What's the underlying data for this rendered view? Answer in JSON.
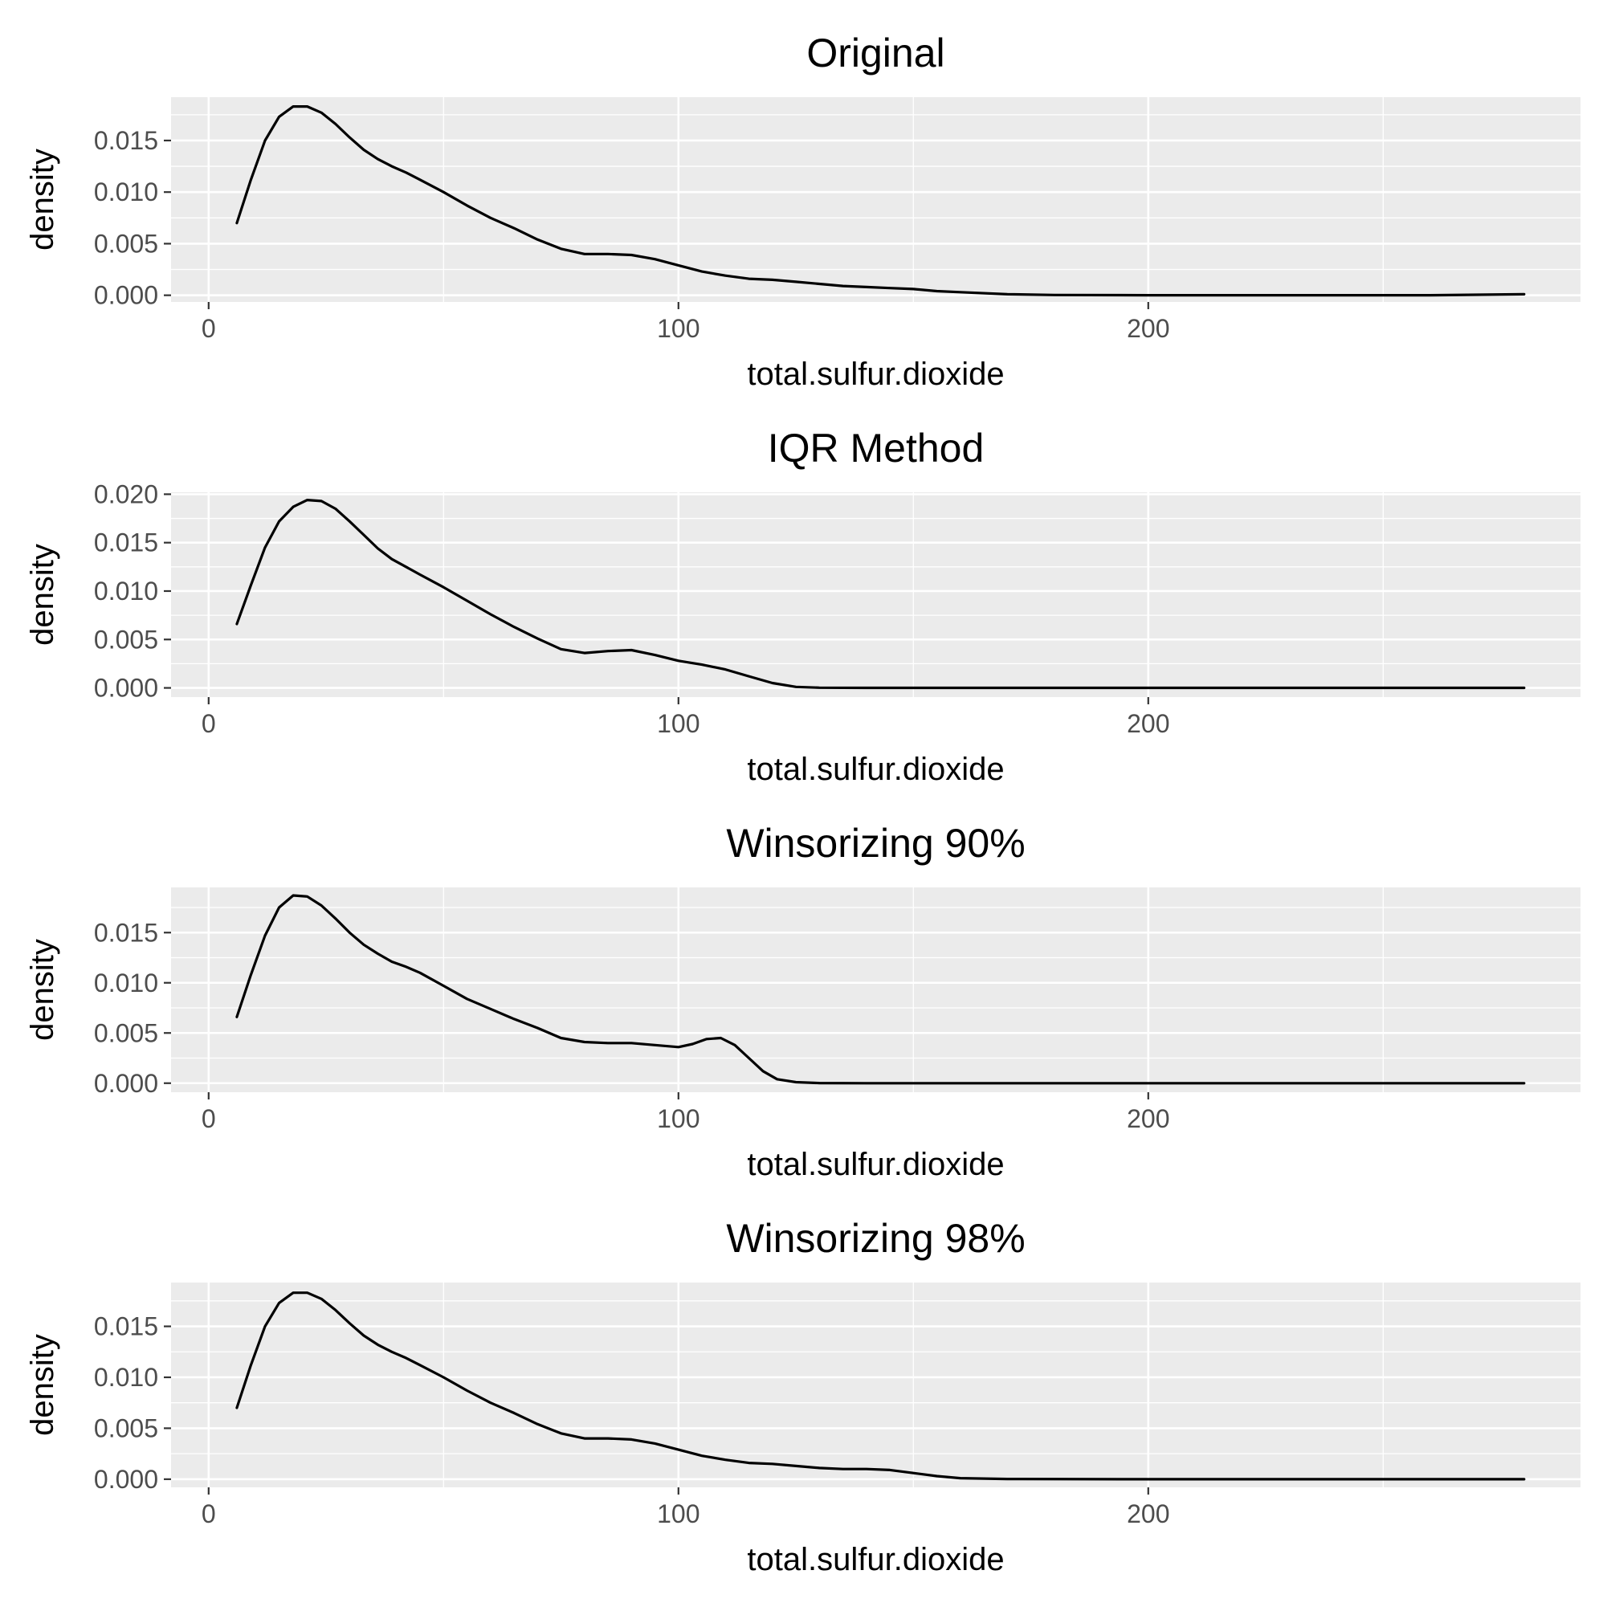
{
  "chart_data": [
    {
      "type": "line",
      "title": "Original",
      "xlabel": "total.sulfur.dioxide",
      "ylabel": "density",
      "xlim": [
        -8,
        292
      ],
      "ylim": [
        -0.00065,
        0.0192
      ],
      "xticks": [
        0,
        100,
        200
      ],
      "xtick_labels": [
        "0",
        "100",
        "200"
      ],
      "yticks": [
        0,
        0.005,
        0.01,
        0.015
      ],
      "ytick_labels": [
        "0.000",
        "0.005",
        "0.010",
        "0.015"
      ],
      "grid": true,
      "series": [
        {
          "color": "#000000",
          "x": [
            6,
            9,
            12,
            15,
            18,
            21,
            24,
            27,
            30,
            33,
            36,
            39,
            42,
            45,
            50,
            55,
            60,
            65,
            70,
            75,
            80,
            85,
            90,
            95,
            100,
            105,
            110,
            115,
            120,
            125,
            130,
            135,
            140,
            145,
            150,
            155,
            160,
            170,
            180,
            200,
            220,
            240,
            260,
            280
          ],
          "y": [
            0.007,
            0.0112,
            0.015,
            0.0173,
            0.0183,
            0.0183,
            0.0177,
            0.0166,
            0.0153,
            0.0141,
            0.0132,
            0.0125,
            0.0119,
            0.0112,
            0.01,
            0.0087,
            0.0075,
            0.0065,
            0.0054,
            0.0045,
            0.004,
            0.004,
            0.0039,
            0.0035,
            0.0029,
            0.0023,
            0.0019,
            0.0016,
            0.0015,
            0.0013,
            0.0011,
            0.0009,
            0.0008,
            0.0007,
            0.0006,
            0.0004,
            0.0003,
            0.0001,
            3e-05,
            0.0,
            0.0,
            0.0,
            0.0,
            0.0001
          ]
        }
      ]
    },
    {
      "type": "line",
      "title": "IQR Method",
      "xlabel": "total.sulfur.dioxide",
      "ylabel": "density",
      "xlim": [
        -8,
        292
      ],
      "ylim": [
        -0.00095,
        0.0202
      ],
      "xticks": [
        0,
        100,
        200
      ],
      "xtick_labels": [
        "0",
        "100",
        "200"
      ],
      "yticks": [
        0,
        0.005,
        0.01,
        0.015,
        0.02
      ],
      "ytick_labels": [
        "0.000",
        "0.005",
        "0.010",
        "0.015",
        "0.020"
      ],
      "grid": true,
      "series": [
        {
          "color": "#000000",
          "x": [
            6,
            9,
            12,
            15,
            18,
            21,
            24,
            27,
            30,
            33,
            36,
            39,
            42,
            45,
            50,
            55,
            60,
            65,
            70,
            75,
            80,
            85,
            90,
            95,
            100,
            105,
            110,
            115,
            120,
            125,
            130,
            140,
            160,
            200,
            240,
            280
          ],
          "y": [
            0.0066,
            0.0106,
            0.0145,
            0.0172,
            0.0187,
            0.0194,
            0.0193,
            0.0185,
            0.0172,
            0.0158,
            0.0144,
            0.0133,
            0.0125,
            0.0117,
            0.0104,
            0.009,
            0.0076,
            0.0063,
            0.0051,
            0.004,
            0.0036,
            0.0038,
            0.0039,
            0.0034,
            0.0028,
            0.0024,
            0.0019,
            0.0012,
            0.0005,
            0.0001,
            2e-05,
            0.0,
            0.0,
            0.0,
            0.0,
            0.0
          ]
        }
      ]
    },
    {
      "type": "line",
      "title": "Winsorizing 90%",
      "xlabel": "total.sulfur.dioxide",
      "ylabel": "density",
      "xlim": [
        -8,
        292
      ],
      "ylim": [
        -0.0009,
        0.0195
      ],
      "xticks": [
        0,
        100,
        200
      ],
      "xtick_labels": [
        "0",
        "100",
        "200"
      ],
      "yticks": [
        0,
        0.005,
        0.01,
        0.015
      ],
      "ytick_labels": [
        "0.000",
        "0.005",
        "0.010",
        "0.015"
      ],
      "grid": true,
      "series": [
        {
          "color": "#000000",
          "x": [
            6,
            9,
            12,
            15,
            18,
            21,
            24,
            27,
            30,
            33,
            36,
            39,
            42,
            45,
            50,
            55,
            60,
            65,
            70,
            75,
            80,
            85,
            90,
            95,
            100,
            103,
            106,
            109,
            112,
            115,
            118,
            121,
            125,
            130,
            140,
            160,
            200,
            240,
            280
          ],
          "y": [
            0.0066,
            0.0108,
            0.0147,
            0.0175,
            0.0187,
            0.0186,
            0.0177,
            0.0164,
            0.015,
            0.0138,
            0.0129,
            0.0121,
            0.0116,
            0.011,
            0.0097,
            0.0084,
            0.0074,
            0.0064,
            0.0055,
            0.0045,
            0.0041,
            0.004,
            0.004,
            0.0038,
            0.0036,
            0.0039,
            0.0044,
            0.0045,
            0.0038,
            0.0025,
            0.0012,
            0.0004,
            0.0001,
            1e-05,
            0.0,
            0.0,
            0.0,
            0.0,
            0.0
          ]
        }
      ]
    },
    {
      "type": "line",
      "title": "Winsorizing 98%",
      "xlabel": "total.sulfur.dioxide",
      "ylabel": "density",
      "xlim": [
        -8,
        292
      ],
      "ylim": [
        -0.0008,
        0.0193
      ],
      "xticks": [
        0,
        100,
        200
      ],
      "xtick_labels": [
        "0",
        "100",
        "200"
      ],
      "yticks": [
        0,
        0.005,
        0.01,
        0.015
      ],
      "ytick_labels": [
        "0.000",
        "0.005",
        "0.010",
        "0.015"
      ],
      "grid": true,
      "series": [
        {
          "color": "#000000",
          "x": [
            6,
            9,
            12,
            15,
            18,
            21,
            24,
            27,
            30,
            33,
            36,
            39,
            42,
            45,
            50,
            55,
            60,
            65,
            70,
            75,
            80,
            85,
            90,
            95,
            100,
            105,
            110,
            115,
            120,
            125,
            130,
            135,
            140,
            145,
            150,
            155,
            160,
            170,
            200,
            240,
            280
          ],
          "y": [
            0.007,
            0.0112,
            0.015,
            0.0173,
            0.0183,
            0.0183,
            0.0177,
            0.0166,
            0.0153,
            0.0141,
            0.0132,
            0.0125,
            0.0119,
            0.0112,
            0.01,
            0.0087,
            0.0075,
            0.0065,
            0.0054,
            0.0045,
            0.004,
            0.004,
            0.0039,
            0.0035,
            0.0029,
            0.0023,
            0.0019,
            0.0016,
            0.0015,
            0.0013,
            0.0011,
            0.001,
            0.001,
            0.0009,
            0.0006,
            0.0003,
            0.0001,
            2e-05,
            0.0,
            0.0,
            0.0
          ]
        }
      ]
    }
  ]
}
